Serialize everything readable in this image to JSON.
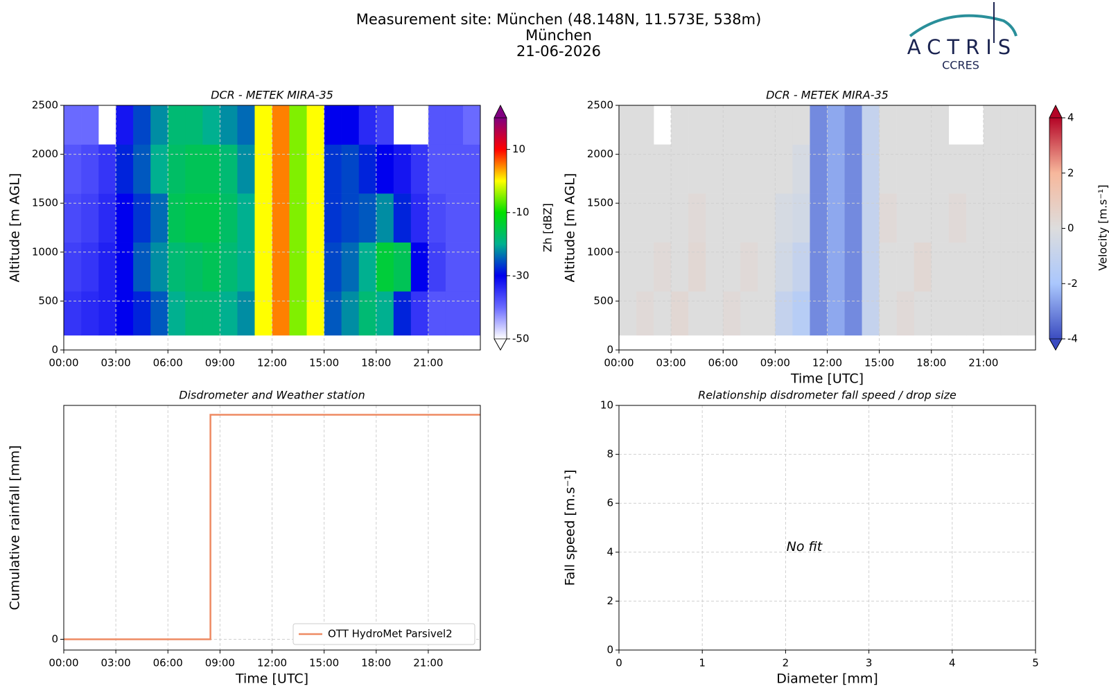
{
  "header": {
    "title": [
      "Measurement site: München (48.148N, 11.573E, 538m)",
      "München",
      "21-06-2026"
    ]
  },
  "logo": {
    "name": "ACTRIS",
    "sub": "CCRES"
  },
  "chart_data": [
    {
      "type": "heatmap",
      "title": "DCR - METEK MIRA-35",
      "ylabel": "Altitude [m AGL]",
      "x_bins": [
        0,
        1,
        2,
        3,
        4,
        5,
        6,
        7,
        8,
        9,
        10,
        11,
        12,
        13,
        14,
        15,
        16,
        17,
        18,
        19,
        20,
        21,
        22,
        23,
        24
      ],
      "y_bins": [
        150,
        600,
        1100,
        1600,
        2100,
        2500
      ],
      "z": [
        [
          -35,
          -34,
          -33,
          -30,
          -28,
          -25,
          -20,
          -18,
          -18,
          -20,
          -22,
          0,
          5,
          -5,
          0,
          -25,
          -22,
          -18,
          -20,
          -28,
          -35,
          -38,
          -38,
          -38
        ],
        [
          -36,
          -35,
          -33,
          -30,
          -25,
          -22,
          -18,
          -17,
          -16,
          -18,
          -20,
          0,
          5,
          -5,
          0,
          -26,
          -24,
          -20,
          -14,
          -16,
          -30,
          -36,
          -38,
          -38
        ],
        [
          -37,
          -36,
          -34,
          -30,
          -27,
          -24,
          -16,
          -15,
          -15,
          -17,
          -20,
          0,
          5,
          -5,
          0,
          -27,
          -26,
          -25,
          -22,
          -28,
          -34,
          -37,
          -38,
          -38
        ],
        [
          -38,
          -37,
          -35,
          -28,
          -25,
          -20,
          -17,
          -16,
          -16,
          -18,
          -22,
          0,
          5,
          -5,
          0,
          -27,
          -26,
          -28,
          -30,
          -32,
          -35,
          -38,
          -38,
          -38
        ],
        [
          -40,
          -40,
          null,
          -32,
          -26,
          -22,
          -18,
          -18,
          -20,
          -22,
          -24,
          0,
          5,
          -5,
          0,
          -30,
          -30,
          -34,
          -36,
          null,
          null,
          -38,
          -38,
          -40
        ]
      ],
      "xlim": [
        0,
        24
      ],
      "ylim": [
        0,
        2500
      ],
      "xticks": [
        {
          "value": 0,
          "label": "00:00"
        },
        {
          "value": 3,
          "label": "03:00"
        },
        {
          "value": 6,
          "label": "06:00"
        },
        {
          "value": 9,
          "label": "09:00"
        },
        {
          "value": 12,
          "label": "12:00"
        },
        {
          "value": 15,
          "label": "15:00"
        },
        {
          "value": 18,
          "label": "18:00"
        },
        {
          "value": 21,
          "label": "21:00"
        }
      ],
      "yticks": [
        0,
        500,
        1000,
        1500,
        2000,
        2500
      ],
      "grid": true,
      "colorbar": {
        "label": "Zh [dBZ]",
        "lim": [
          -50,
          20
        ],
        "ticks": [
          -50,
          -30,
          -10,
          10
        ],
        "colors": [
          "#ffffff",
          "#6a6aff",
          "#0000ee",
          "#00b090",
          "#00e000",
          "#ffff00",
          "#ff0000",
          "#800080"
        ]
      }
    },
    {
      "type": "heatmap",
      "title": "DCR - METEK MIRA-35",
      "ylabel": "Altitude [m AGL]",
      "xlabel": "Time [UTC]",
      "x_bins": [
        0,
        1,
        2,
        3,
        4,
        5,
        6,
        7,
        8,
        9,
        10,
        11,
        12,
        13,
        14,
        15,
        16,
        17,
        18,
        19,
        20,
        21,
        22,
        23,
        24
      ],
      "y_bins": [
        150,
        600,
        1100,
        1600,
        2100,
        2500
      ],
      "z": [
        [
          0,
          0.2,
          0,
          0.3,
          0,
          0,
          0.2,
          0,
          0,
          -1,
          -1.5,
          -3,
          -2.5,
          -3,
          -1,
          0,
          0.2,
          0,
          0,
          0,
          0,
          0,
          0,
          0
        ],
        [
          0,
          0,
          0.2,
          0,
          0.3,
          0,
          0,
          0.2,
          0,
          -0.5,
          -1,
          -3,
          -2.5,
          -3,
          -1,
          0,
          0,
          0.3,
          0,
          0,
          0,
          0,
          0,
          0
        ],
        [
          0,
          0,
          0,
          0,
          0.2,
          0,
          0,
          0,
          0,
          -0.3,
          -0.5,
          -3,
          -2.5,
          -3,
          -1,
          0.2,
          0,
          0,
          0,
          0.2,
          0,
          0,
          0,
          0
        ],
        [
          0,
          0,
          0,
          0,
          0,
          0,
          0,
          0,
          0,
          0,
          -0.3,
          -3,
          -2.5,
          -3,
          -1,
          0,
          0,
          0,
          0,
          0,
          0,
          0,
          0,
          0
        ],
        [
          0,
          0,
          null,
          0,
          0,
          0,
          0,
          0,
          0,
          0,
          0,
          -3,
          -2.5,
          -3,
          -1,
          0,
          0,
          0,
          0,
          null,
          null,
          0,
          0,
          0
        ]
      ],
      "xlim": [
        0,
        24
      ],
      "ylim": [
        0,
        2500
      ],
      "xticks": [
        {
          "value": 0,
          "label": "00:00"
        },
        {
          "value": 3,
          "label": "03:00"
        },
        {
          "value": 6,
          "label": "06:00"
        },
        {
          "value": 9,
          "label": "09:00"
        },
        {
          "value": 12,
          "label": "12:00"
        },
        {
          "value": 15,
          "label": "15:00"
        },
        {
          "value": 18,
          "label": "18:00"
        },
        {
          "value": 21,
          "label": "21:00"
        }
      ],
      "yticks": [
        0,
        500,
        1000,
        1500,
        2000,
        2500
      ],
      "grid": true,
      "colorbar": {
        "label": "Velocity [m.s⁻¹]",
        "lim": [
          -4,
          4
        ],
        "ticks": [
          -4,
          -2,
          0,
          2,
          4
        ],
        "colors": [
          "#3b4cc0",
          "#aac7fd",
          "#dddddd",
          "#f7b89c",
          "#b40426"
        ]
      }
    },
    {
      "type": "line",
      "title": "Disdrometer and Weather station",
      "ylabel": "Cumulative rainfall [mm]",
      "xlabel": "Time [UTC]",
      "x": [
        0,
        8.45,
        8.45,
        24
      ],
      "series": [
        {
          "name": "OTT HydroMet Parsivel2",
          "color": "#ee8a62",
          "values": [
            0,
            0,
            0.96,
            0.96
          ]
        }
      ],
      "xlim": [
        0,
        24
      ],
      "ylim": [
        -0.046,
        1
      ],
      "xticks": [
        {
          "value": 0,
          "label": "00:00"
        },
        {
          "value": 3,
          "label": "03:00"
        },
        {
          "value": 6,
          "label": "06:00"
        },
        {
          "value": 9,
          "label": "09:00"
        },
        {
          "value": 12,
          "label": "12:00"
        },
        {
          "value": 15,
          "label": "15:00"
        },
        {
          "value": 18,
          "label": "18:00"
        },
        {
          "value": 21,
          "label": "21:00"
        }
      ],
      "yticks": [
        0
      ],
      "grid": true,
      "legend": "lower right"
    },
    {
      "type": "scatter",
      "title": "Relationship disdrometer fall speed / drop size",
      "ylabel": "Fall speed [m.s⁻¹]",
      "xlabel": "Diameter [mm]",
      "annotation": "No fit",
      "xlim": [
        0,
        5
      ],
      "ylim": [
        0,
        10
      ],
      "xticks": [
        0,
        1,
        2,
        3,
        4,
        5
      ],
      "yticks": [
        0,
        2,
        4,
        6,
        8,
        10
      ],
      "grid": true
    }
  ]
}
